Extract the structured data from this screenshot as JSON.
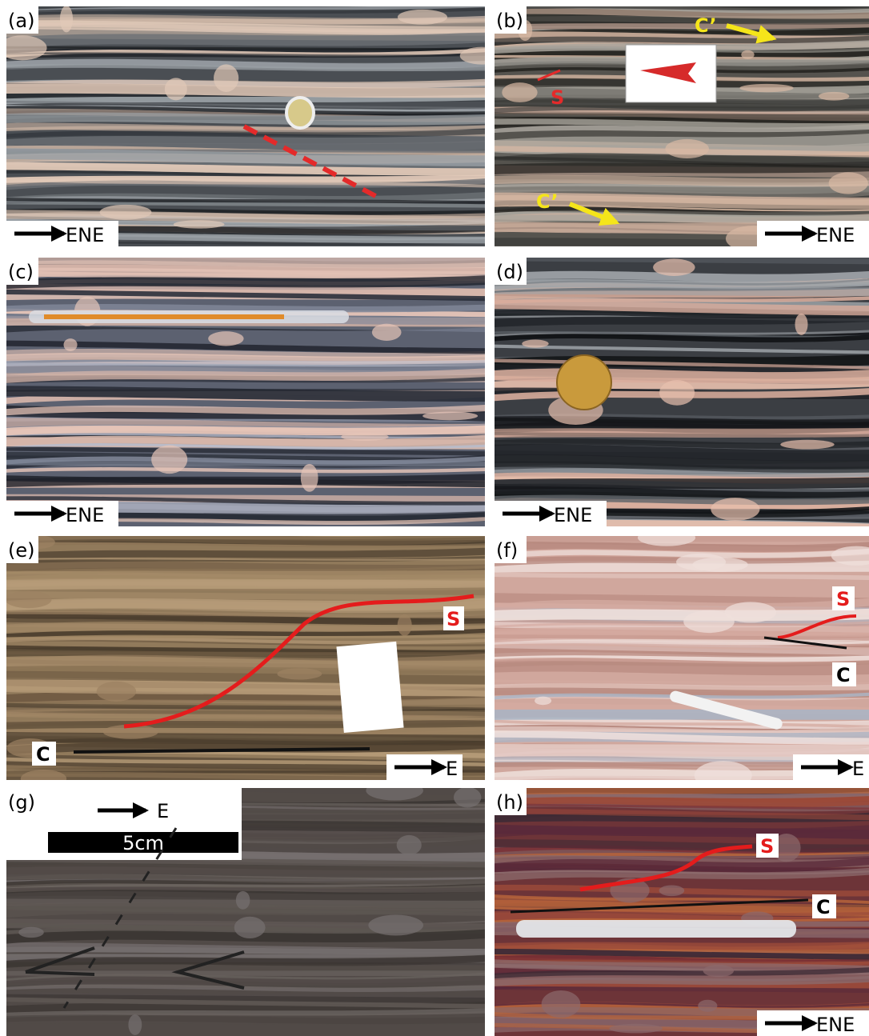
{
  "panels": [
    {
      "label": "(a)",
      "direction": "ENE"
    },
    {
      "label": "(b)",
      "direction": "ENE",
      "annotations": [
        "S",
        "C’",
        "C’"
      ]
    },
    {
      "label": "(c)",
      "direction": "ENE"
    },
    {
      "label": "(d)",
      "direction": "ENE"
    },
    {
      "label": "(e)",
      "direction": "E",
      "annotations": [
        "S",
        "C"
      ]
    },
    {
      "label": "(f)",
      "direction": "E",
      "annotations": [
        "S",
        "C"
      ]
    },
    {
      "label": "(g)",
      "direction": "E",
      "scale": "5cm"
    },
    {
      "label": "(h)",
      "direction": "ENE",
      "annotations": [
        "S",
        "C"
      ]
    }
  ]
}
